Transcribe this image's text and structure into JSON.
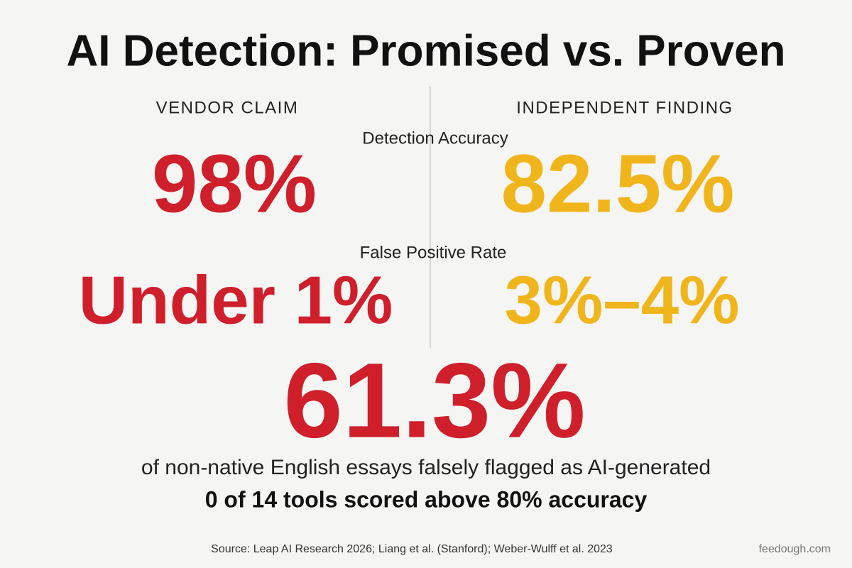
{
  "header": {
    "title": "AI Detection: Promised vs. Proven"
  },
  "columns": {
    "left": "VENDOR CLAIM",
    "right": "INDEPENDENT FINDING"
  },
  "metrics": [
    {
      "label": "Detection Accuracy",
      "vendor": "98%",
      "independent": "82.5%"
    },
    {
      "label": "False Positive Rate",
      "vendor": "Under 1%",
      "independent": "3%–4%"
    }
  ],
  "highlight": {
    "value": "61.3%",
    "description": "of non-native English essays falsely flagged as AI-generated",
    "note": "0 of 14 tools scored above 80% accuracy"
  },
  "footer": {
    "source": "Source: Leap AI Research 2026; Liang et al. (Stanford); Weber-Wulff et al. 2023",
    "brand": "feedough.com"
  }
}
